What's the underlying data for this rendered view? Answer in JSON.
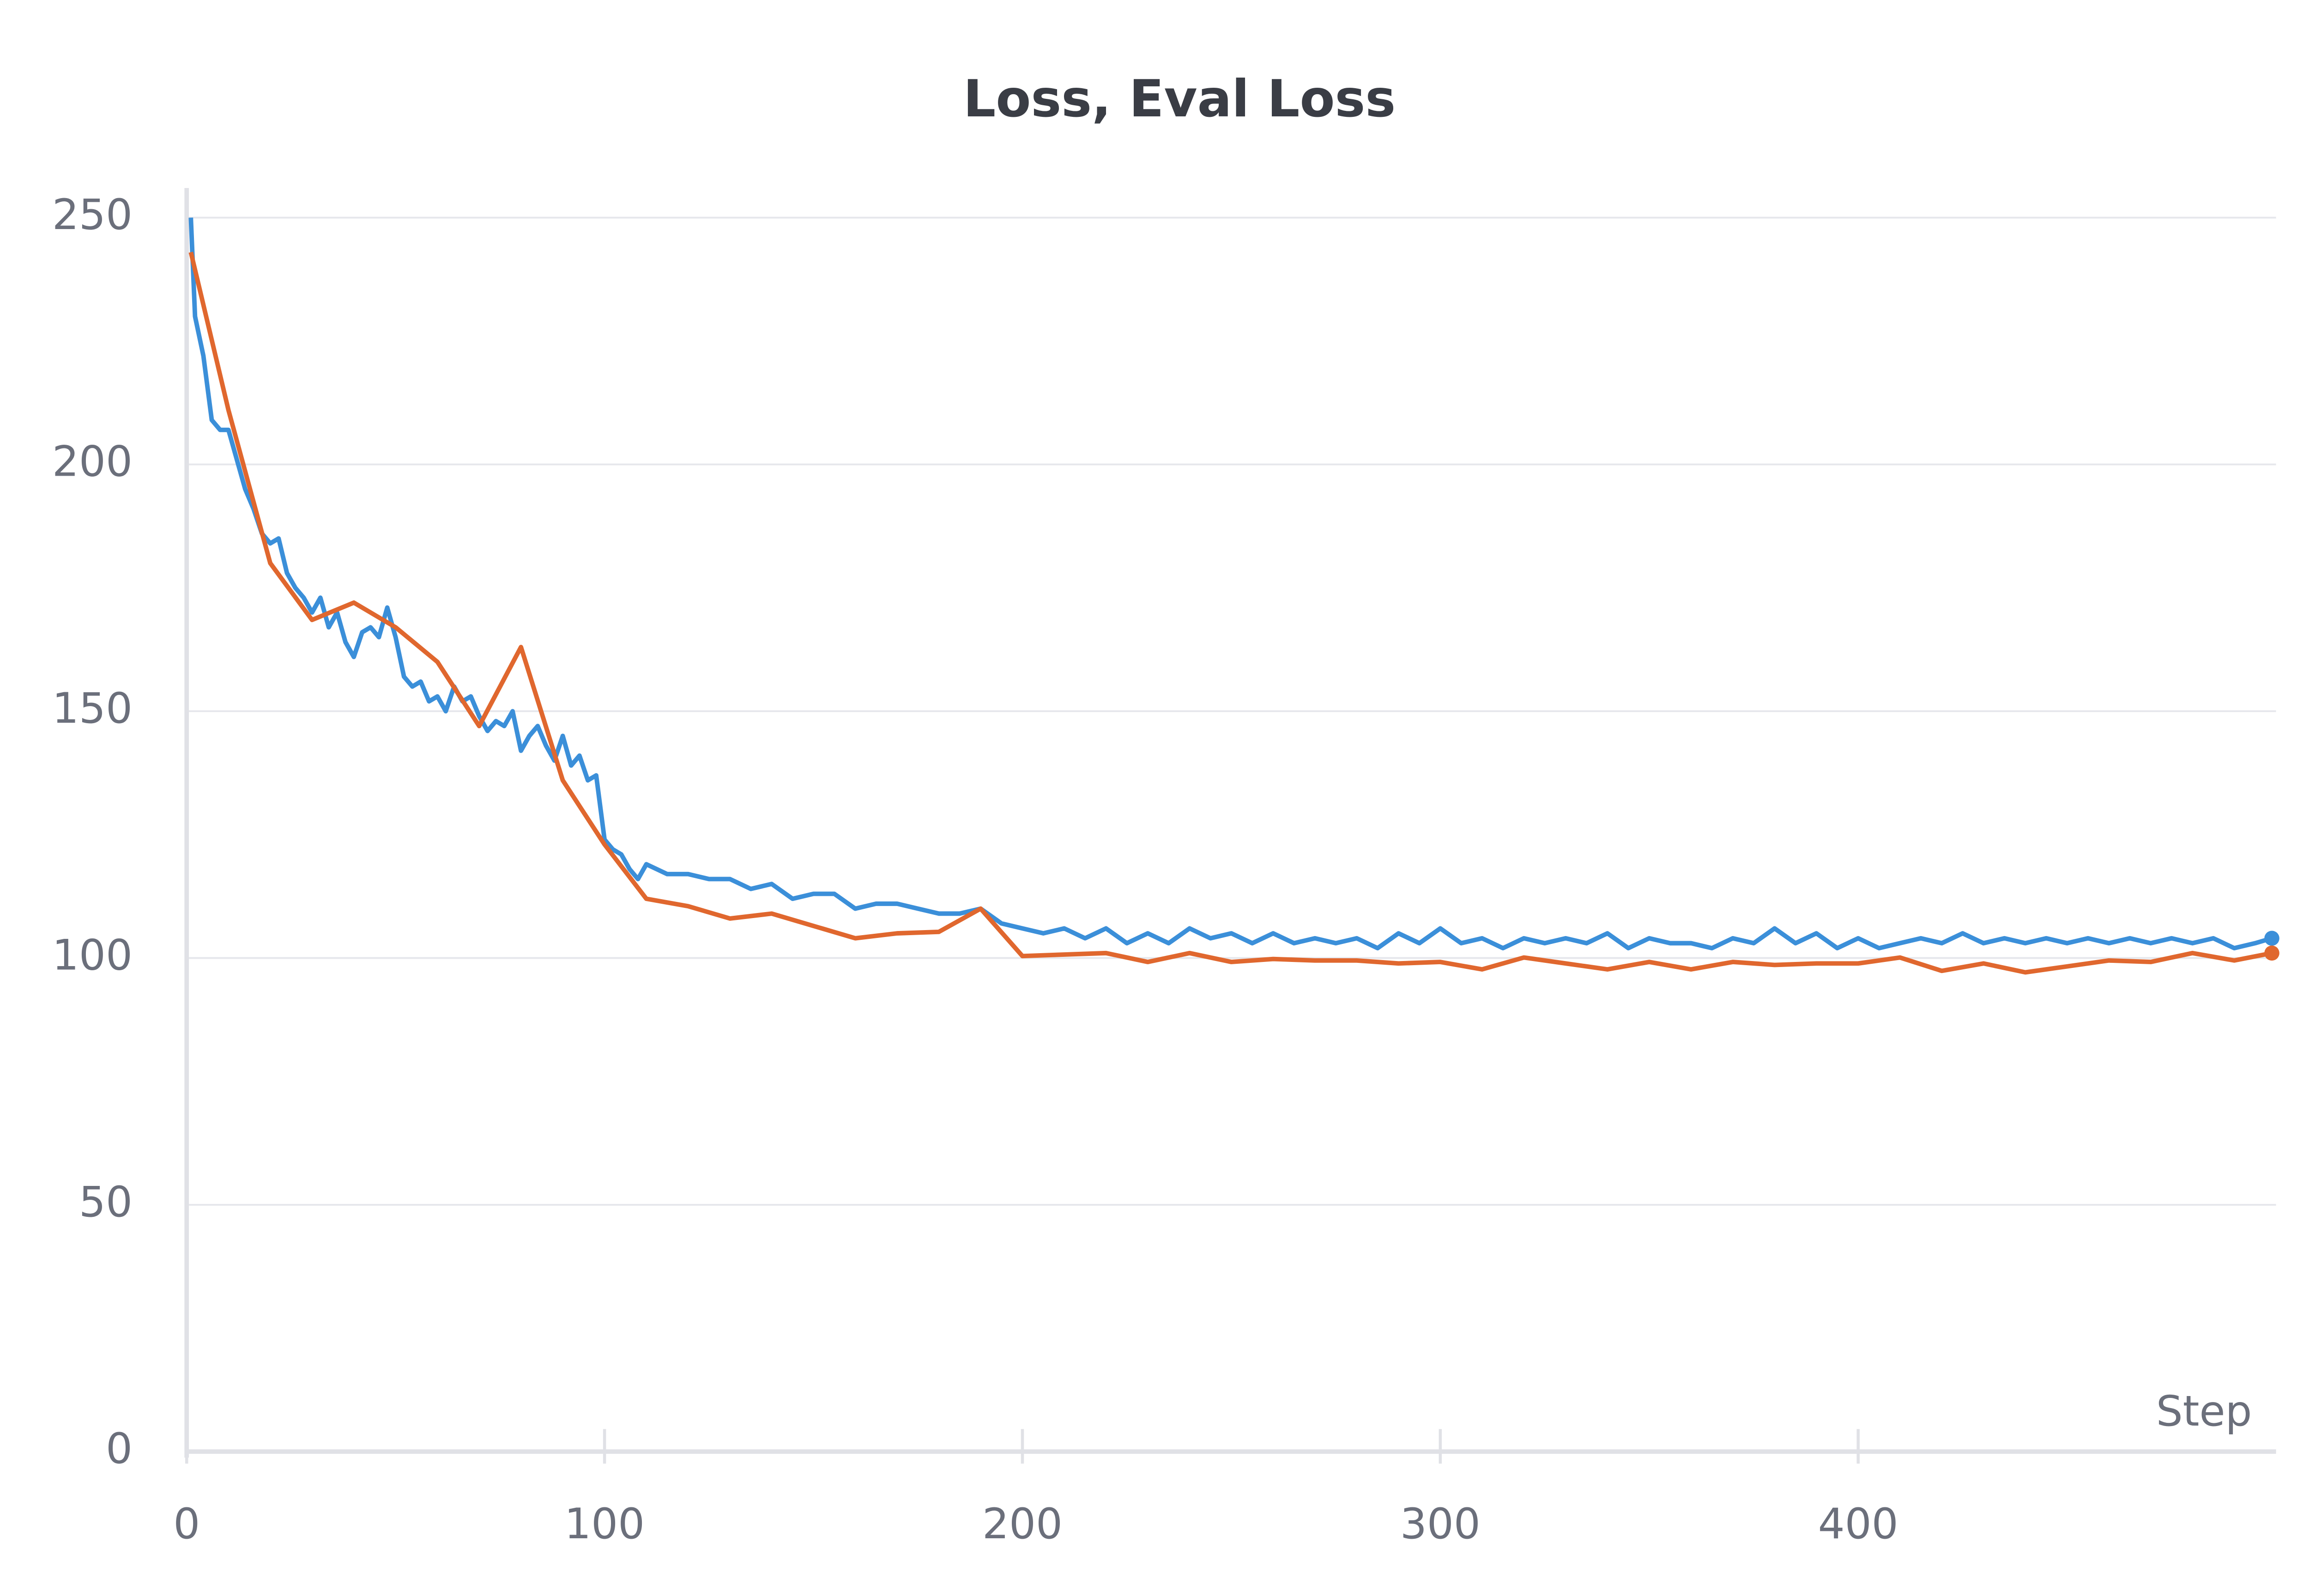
{
  "chart_data": {
    "type": "line",
    "title": "Loss, Eval Loss",
    "x_label": "Step",
    "xlim": [
      0,
      500
    ],
    "ylim": [
      0,
      256
    ],
    "xticks": [
      0,
      100,
      200,
      300,
      400
    ],
    "yticks": [
      0,
      50,
      100,
      150,
      200,
      250
    ],
    "grid": true,
    "series": [
      {
        "name": "Loss",
        "color": "#3b8fd9",
        "x": [
          1,
          2,
          4,
          6,
          8,
          10,
          12,
          14,
          16,
          18,
          20,
          22,
          24,
          26,
          28,
          30,
          32,
          34,
          36,
          38,
          40,
          42,
          44,
          46,
          48,
          50,
          52,
          54,
          56,
          58,
          60,
          62,
          64,
          66,
          68,
          70,
          72,
          74,
          76,
          78,
          80,
          82,
          84,
          86,
          88,
          90,
          92,
          94,
          96,
          98,
          100,
          102,
          104,
          106,
          108,
          110,
          115,
          120,
          125,
          130,
          135,
          140,
          145,
          150,
          155,
          160,
          165,
          170,
          175,
          180,
          185,
          190,
          195,
          200,
          205,
          210,
          215,
          220,
          225,
          230,
          235,
          240,
          245,
          250,
          255,
          260,
          265,
          270,
          275,
          280,
          285,
          290,
          295,
          300,
          305,
          310,
          315,
          320,
          325,
          330,
          335,
          340,
          345,
          350,
          355,
          360,
          365,
          370,
          375,
          380,
          385,
          390,
          395,
          400,
          405,
          410,
          415,
          420,
          425,
          430,
          435,
          440,
          445,
          450,
          455,
          460,
          465,
          470,
          475,
          480,
          485,
          490,
          495,
          499
        ],
        "values": [
          250,
          230,
          222,
          209,
          207,
          207,
          201,
          195,
          191,
          186,
          184,
          185,
          178,
          175,
          173,
          170,
          173,
          167,
          170,
          164,
          161,
          166,
          167,
          165,
          171,
          165,
          157,
          155,
          156,
          152,
          153,
          150,
          155,
          152,
          153,
          149,
          146,
          148,
          147,
          150,
          142,
          145,
          147,
          143,
          140,
          145,
          139,
          141,
          136,
          137,
          124,
          122,
          121,
          118,
          116,
          119,
          117,
          117,
          116,
          116,
          114,
          115,
          112,
          113,
          113,
          110,
          111,
          111,
          110,
          109,
          109,
          110,
          107,
          106,
          105,
          106,
          104,
          106,
          103,
          105,
          103,
          106,
          104,
          105,
          103,
          105,
          103,
          104,
          103,
          104,
          102,
          105,
          103,
          106,
          103,
          104,
          102,
          104,
          103,
          104,
          103,
          105,
          102,
          104,
          103,
          103,
          102,
          104,
          103,
          106,
          103,
          105,
          102,
          104,
          102,
          103,
          104,
          103,
          105,
          103,
          104,
          103,
          104,
          103,
          104,
          103,
          104,
          103,
          104,
          103,
          104,
          102,
          103,
          104
        ]
      },
      {
        "name": "Eval Loss",
        "color": "#e0672e",
        "x": [
          1,
          10,
          20,
          30,
          40,
          50,
          60,
          70,
          80,
          90,
          100,
          110,
          120,
          130,
          140,
          150,
          160,
          170,
          180,
          190,
          200,
          210,
          220,
          230,
          240,
          250,
          260,
          270,
          280,
          290,
          300,
          310,
          320,
          330,
          340,
          350,
          360,
          370,
          380,
          390,
          400,
          410,
          420,
          430,
          440,
          450,
          460,
          470,
          480,
          490,
          499
        ],
        "values": [
          243,
          211,
          180,
          168.5,
          172,
          167,
          160,
          147,
          163,
          136,
          123,
          112,
          110.5,
          108,
          109,
          106.5,
          104,
          105,
          105.3,
          110,
          100.4,
          100.7,
          101,
          99.2,
          101,
          99.2,
          99.8,
          99.5,
          99.5,
          98.9,
          99.2,
          97.7,
          100.1,
          98.9,
          97.7,
          99.2,
          97.7,
          99.2,
          98.6,
          98.9,
          98.9,
          100.1,
          97.4,
          98.9,
          97.1,
          98.3,
          99.5,
          99.2,
          101,
          99.5,
          101
        ]
      }
    ]
  }
}
